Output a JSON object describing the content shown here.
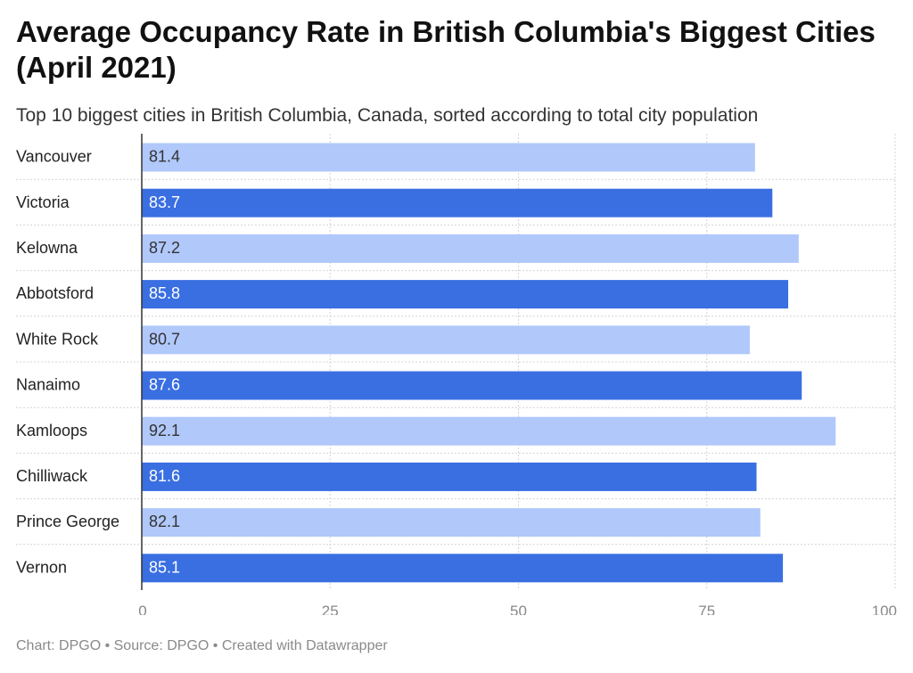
{
  "title": "Average Occupancy Rate in British Columbia's Biggest Cities (April 2021)",
  "subtitle": "Top 10 biggest cities in British Columbia, Canada, sorted according to total city population",
  "footer": "Chart: DPGO • Source: DPGO • Created with Datawrapper",
  "colors": {
    "bar_light": "#b0c8fa",
    "bar_dark": "#3a6fe2",
    "grid": "#d4d4d4",
    "axis": "#333333",
    "tick_text": "#888888"
  },
  "chart_data": {
    "type": "bar",
    "orientation": "horizontal",
    "categories": [
      "Vancouver",
      "Victoria",
      "Kelowna",
      "Abbotsford",
      "White Rock",
      "Nanaimo",
      "Kamloops",
      "Chilliwack",
      "Prince George",
      "Vernon"
    ],
    "values": [
      81.4,
      83.7,
      87.2,
      85.8,
      80.7,
      87.6,
      92.1,
      81.6,
      82.1,
      85.1
    ],
    "value_labels": [
      "81.4",
      "83.7",
      "87.2",
      "85.8",
      "80.7",
      "87.6",
      "92.1",
      "81.6",
      "82.1",
      "85.1"
    ],
    "xlim": [
      0,
      100
    ],
    "xticks": [
      0,
      25,
      50,
      75,
      100
    ],
    "xtick_labels": [
      "0",
      "25",
      "50",
      "75",
      "100"
    ],
    "grid": true,
    "bar_colors": [
      "#b0c8fa",
      "#3a6fe2",
      "#b0c8fa",
      "#3a6fe2",
      "#b0c8fa",
      "#3a6fe2",
      "#b0c8fa",
      "#3a6fe2",
      "#b0c8fa",
      "#3a6fe2"
    ],
    "value_label_colors": [
      "#333333",
      "#ffffff",
      "#333333",
      "#ffffff",
      "#333333",
      "#ffffff",
      "#333333",
      "#ffffff",
      "#333333",
      "#ffffff"
    ]
  }
}
